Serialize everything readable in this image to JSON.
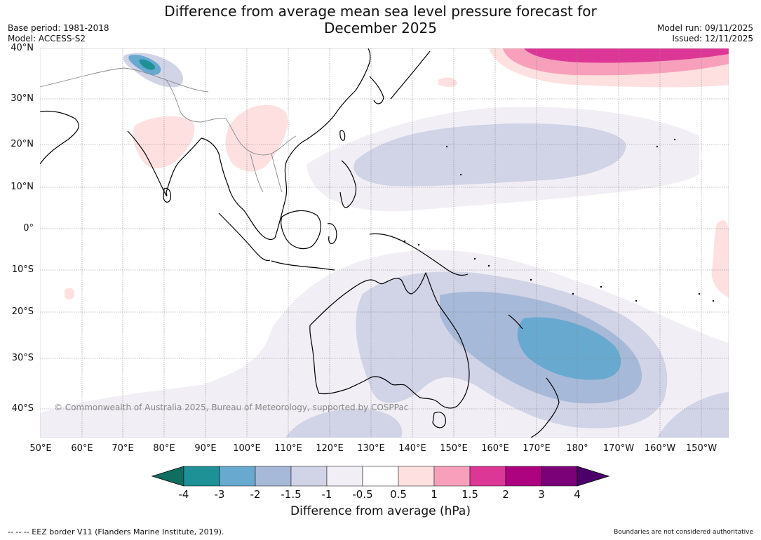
{
  "header": {
    "title_line1": "Difference from average mean sea level pressure forecast for",
    "title_line2": "December 2025",
    "base_period": "Base period: 1981-2018",
    "model": "Model: ACCESS-S2",
    "model_run": "Model run: 09/11/2025",
    "issued": "Issued: 12/11/2025"
  },
  "map": {
    "lat_labels": [
      "40°N",
      "30°N",
      "20°N",
      "10°N",
      "0°",
      "10°S",
      "20°S",
      "30°S",
      "40°S"
    ],
    "lon_labels": [
      "50°E",
      "60°E",
      "70°E",
      "80°E",
      "90°E",
      "100°E",
      "110°E",
      "120°E",
      "130°E",
      "140°E",
      "150°E",
      "160°E",
      "170°E",
      "180°",
      "170°W",
      "160°W",
      "150°W"
    ],
    "copyright": "© Commonwealth of Australia 2025, Bureau of Meteorology, supported by COSPPac"
  },
  "colorbar": {
    "title": "Difference from average (hPa)",
    "tick_labels": [
      "-4",
      "-3",
      "-2",
      "-1.5",
      "-1",
      "-0.5",
      "0.5",
      "1",
      "1.5",
      "2",
      "3",
      "4"
    ],
    "colors": [
      "#0f6e60",
      "#1e9196",
      "#68a9d0",
      "#a7b9d8",
      "#d1d3e6",
      "#f1eef5",
      "#ffffff",
      "#fde0df",
      "#f8a0bb",
      "#dc3796",
      "#ad0381",
      "#7a0177",
      "#4a0068"
    ]
  },
  "footer": {
    "eez_note": "--  --  -- EEZ border V11 (Flanders Marine Institute, 2019).",
    "boundaries_note": "Boundaries are not considered authoritative"
  }
}
